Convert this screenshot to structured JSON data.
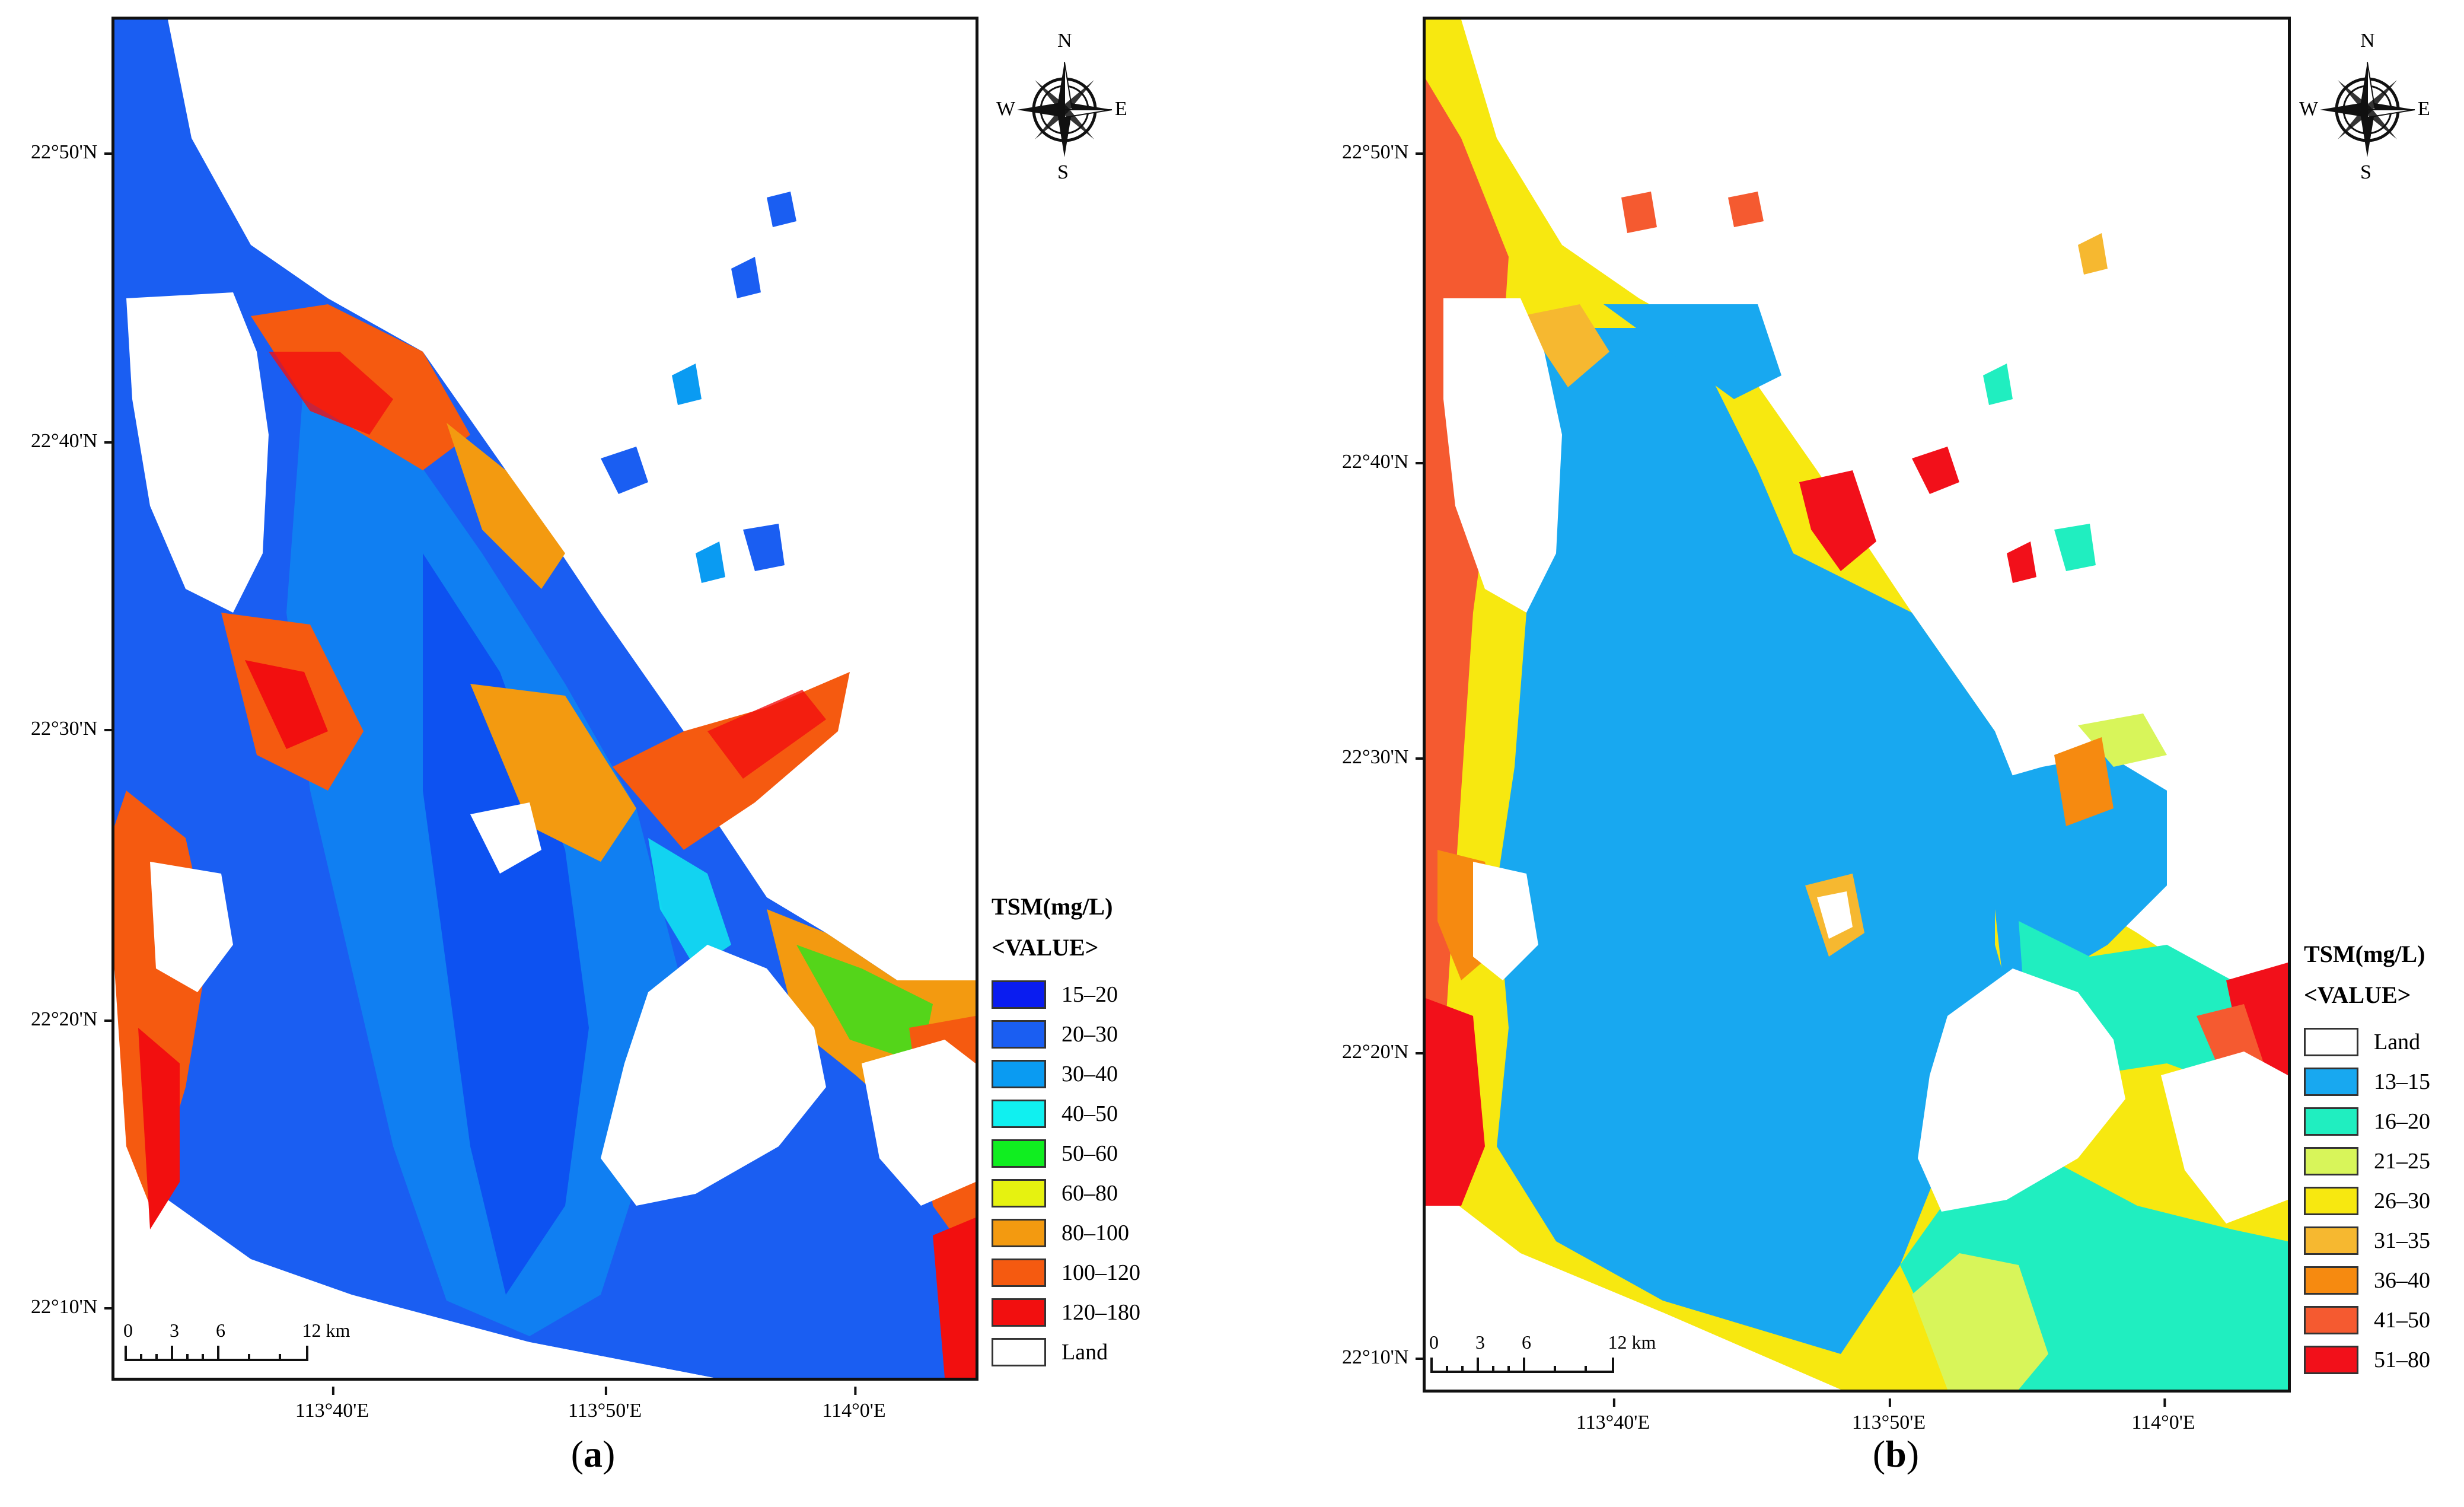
{
  "compass": {
    "n": "N",
    "s": "S",
    "e": "E",
    "w": "W"
  },
  "panels": [
    {
      "label_open": "(",
      "label_letter": "a",
      "label_close": ")",
      "lat_labels": [
        "22°50'N",
        "22°40'N",
        "22°30'N",
        "22°20'N",
        "22°10'N"
      ],
      "lon_labels": [
        "113°40'E",
        "113°50'E",
        "114°0'E"
      ],
      "scale": {
        "ticks": [
          "0",
          "3",
          "6",
          "12 km"
        ]
      },
      "legend": {
        "title": "TSM(mg/L)",
        "subtitle": "<VALUE>",
        "entries": [
          {
            "label": "15–20",
            "color": "#0a1cf0"
          },
          {
            "label": "20–30",
            "color": "#1a5ef2"
          },
          {
            "label": "30–40",
            "color": "#0a9bf2"
          },
          {
            "label": "40–50",
            "color": "#10f0f0"
          },
          {
            "label": "50–60",
            "color": "#10ee20"
          },
          {
            "label": "60–80",
            "color": "#e6f210"
          },
          {
            "label": "80–100",
            "color": "#f39a10"
          },
          {
            "label": "100–120",
            "color": "#f55a10"
          },
          {
            "label": "120–180",
            "color": "#f20f0f"
          },
          {
            "label": "Land",
            "color": "#ffffff"
          }
        ]
      }
    },
    {
      "label_open": "(",
      "label_letter": "b",
      "label_close": ")",
      "lat_labels": [
        "22°50'N",
        "22°40'N",
        "22°30'N",
        "22°20'N",
        "22°10'N"
      ],
      "lon_labels": [
        "113°40'E",
        "113°50'E",
        "114°0'E"
      ],
      "scale": {
        "ticks": [
          "0",
          "3",
          "6",
          "12 km"
        ]
      },
      "legend": {
        "title": "TSM(mg/L)",
        "subtitle": "<VALUE>",
        "entries": [
          {
            "label": "Land",
            "color": "#ffffff"
          },
          {
            "label": "13–15",
            "color": "#18a8f0"
          },
          {
            "label": "16–20",
            "color": "#20eec0"
          },
          {
            "label": "21–25",
            "color": "#d8f55a"
          },
          {
            "label": "26–30",
            "color": "#f7e810"
          },
          {
            "label": "31–35",
            "color": "#f6b830"
          },
          {
            "label": "36–40",
            "color": "#f68a10"
          },
          {
            "label": "41–50",
            "color": "#f55a30"
          },
          {
            "label": "51–80",
            "color": "#f2101a"
          }
        ]
      }
    }
  ]
}
